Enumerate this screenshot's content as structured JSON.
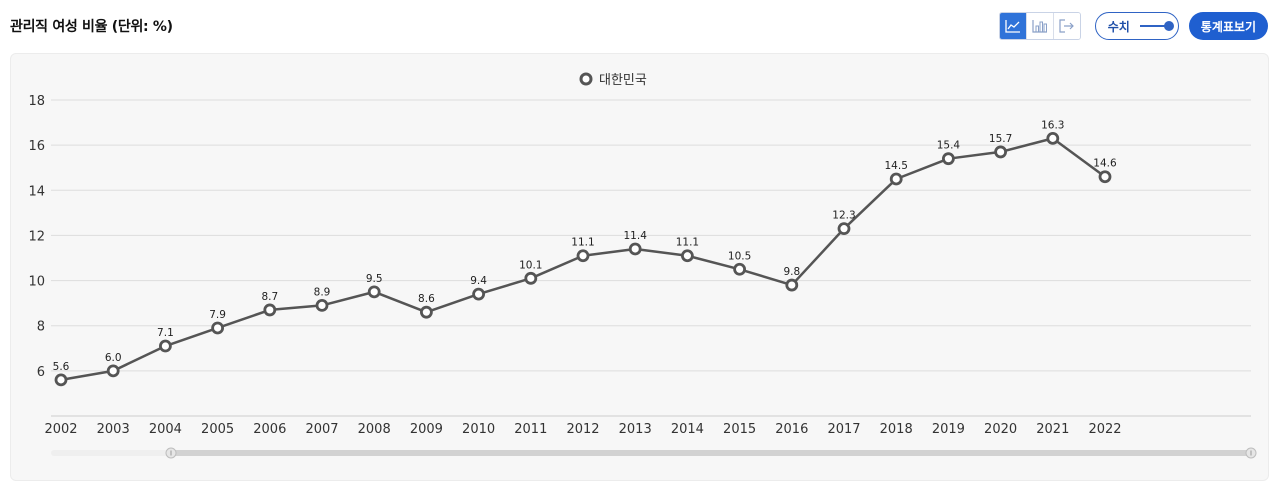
{
  "header": {
    "title": "관리직 여성 비율 (단위: %)",
    "toggle_label": "수치",
    "stat_button_label": "통계표보기"
  },
  "toolbar": {
    "chart_types": [
      "line-chart-icon",
      "bar-chart-icon",
      "export-icon"
    ],
    "active_type": "line-chart-icon",
    "accent_color": "#2f73d9"
  },
  "chart_data": {
    "type": "line",
    "title": "관리직 여성 비율 (단위: %)",
    "categories": [
      "2002",
      "2003",
      "2004",
      "2005",
      "2006",
      "2007",
      "2008",
      "2009",
      "2010",
      "2011",
      "2012",
      "2013",
      "2014",
      "2015",
      "2016",
      "2017",
      "2018",
      "2019",
      "2020",
      "2021",
      "2022"
    ],
    "series": [
      {
        "name": "대한민국",
        "color": "#555555",
        "values": [
          5.6,
          6.0,
          7.1,
          7.9,
          8.7,
          8.9,
          9.5,
          8.6,
          9.4,
          10.1,
          11.1,
          11.4,
          11.1,
          10.5,
          9.8,
          12.3,
          14.5,
          15.4,
          15.7,
          16.3,
          14.6
        ],
        "labels": [
          "5.6",
          "6.0",
          "7.1",
          "7.9",
          "8.7",
          "8.9",
          "9.5",
          "8.6",
          "9.4",
          "10.1",
          "11.1",
          "11.4",
          "11.1",
          "10.5",
          "9.8",
          "12.3",
          "14.5",
          "15.4",
          "15.7",
          "16.3",
          "14.6"
        ]
      }
    ],
    "yticks": [
      "6",
      "8",
      "10",
      "12",
      "14",
      "16",
      "18"
    ],
    "ylim": [
      4,
      18
    ],
    "grid": true,
    "legend_position": "top-center"
  }
}
